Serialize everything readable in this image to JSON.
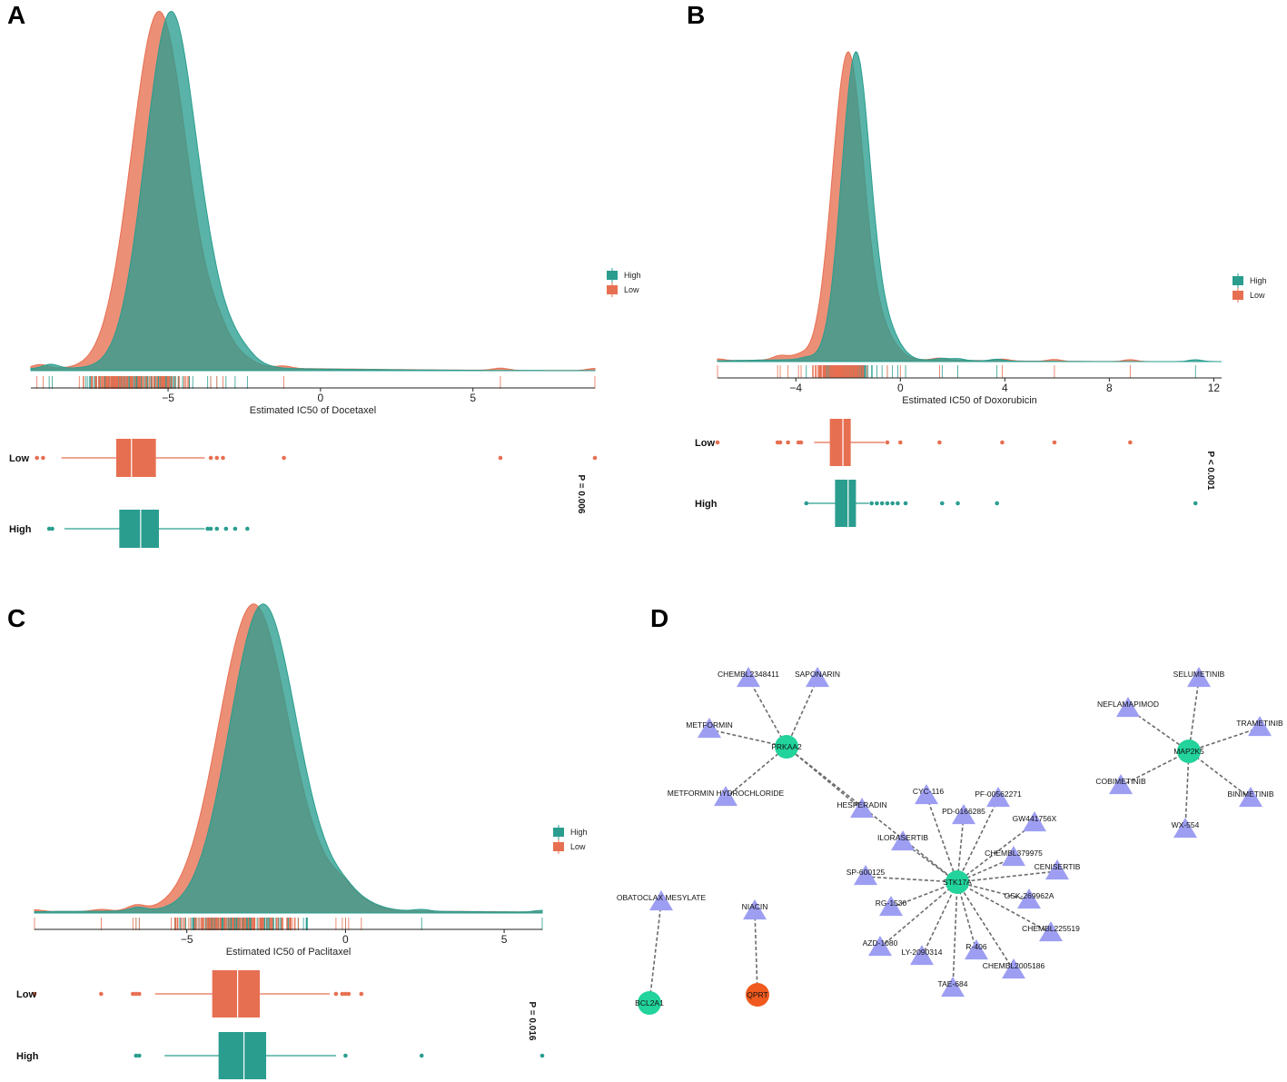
{
  "colors": {
    "high": "#2a9d8f",
    "low": "#e76f51",
    "drug": "#9d9ef2",
    "gene": "#22d39b",
    "gene_alt": "#f05a1e",
    "edge": "#6b6b6b"
  },
  "chart_data": [
    {
      "panel": "A",
      "type": "density+boxplot",
      "xlabel": "Estimated IC50 of Docetaxel",
      "xlim": [
        -9.5,
        9
      ],
      "xticks": [
        -5,
        0,
        5
      ],
      "legend": [
        "High",
        "Low"
      ],
      "series": [
        {
          "name": "High",
          "peak": -4.9,
          "spread": 0.85,
          "box": {
            "min": -8.4,
            "q1": -6.6,
            "median": -5.9,
            "q3": -5.3,
            "max": -3.8
          },
          "outliers": [
            -8.9,
            -8.8,
            -3.7,
            -3.6,
            -3.4,
            -3.1,
            -2.8,
            -2.4
          ]
        },
        {
          "name": "Low",
          "peak": -5.3,
          "spread": 0.9,
          "box": {
            "min": -8.5,
            "q1": -6.7,
            "median": -6.2,
            "q3": -5.4,
            "max": -3.8
          },
          "outliers": [
            -9.3,
            -9.1,
            -3.6,
            -3.4,
            -3.2,
            -1.2,
            5.9,
            9.0
          ]
        }
      ],
      "groups": [
        "Low",
        "High"
      ],
      "pvalue": "P = 0.006"
    },
    {
      "panel": "B",
      "type": "density+boxplot",
      "xlabel": "Estimated IC50 of Doxorubicin",
      "xlim": [
        -7,
        12.3
      ],
      "xticks": [
        -4,
        0,
        4,
        8,
        12
      ],
      "legend": [
        "High",
        "Low"
      ],
      "series": [
        {
          "name": "High",
          "peak": -1.7,
          "spread": 0.55,
          "box": {
            "min": -3.6,
            "q1": -2.5,
            "median": -2.0,
            "q3": -1.7,
            "max": -1.2
          },
          "outliers": [
            -3.6,
            -1.1,
            -0.9,
            -0.7,
            -0.5,
            -0.3,
            -0.1,
            0.2,
            1.6,
            2.2,
            3.7,
            11.3
          ]
        },
        {
          "name": "Low",
          "peak": -2.0,
          "spread": 0.6,
          "box": {
            "min": -3.3,
            "q1": -2.7,
            "median": -2.2,
            "q3": -1.9,
            "max": -0.6
          },
          "outliers": [
            -7.0,
            -4.7,
            -4.6,
            -4.3,
            -3.9,
            -3.8,
            -0.5,
            0.0,
            1.5,
            3.9,
            5.9,
            8.8
          ]
        }
      ],
      "groups": [
        "Low",
        "High"
      ],
      "pvalue": "P < 0.001"
    },
    {
      "panel": "C",
      "type": "density+boxplot",
      "xlabel": "Estimated IC50 of Paclitaxel",
      "xlim": [
        -9.8,
        6.2
      ],
      "xticks": [
        -5,
        0,
        5
      ],
      "legend": [
        "High",
        "Low"
      ],
      "series": [
        {
          "name": "High",
          "peak": -2.6,
          "spread": 1.05,
          "box": {
            "min": -5.7,
            "q1": -4.0,
            "median": -3.2,
            "q3": -2.5,
            "max": -0.3
          },
          "outliers": [
            -6.6,
            -6.5,
            0.0,
            2.4,
            6.2
          ]
        },
        {
          "name": "Low",
          "peak": -2.9,
          "spread": 1.1,
          "box": {
            "min": -6.0,
            "q1": -4.2,
            "median": -3.4,
            "q3": -2.7,
            "max": -0.5
          },
          "outliers": [
            -9.8,
            -7.7,
            -6.7,
            -6.6,
            -6.5,
            -0.3,
            -0.1,
            0.0,
            0.1,
            0.5
          ]
        }
      ],
      "groups": [
        "Low",
        "High"
      ],
      "pvalue": "P = 0.016"
    },
    {
      "panel": "D",
      "type": "network",
      "genes": [
        {
          "id": "PRKAA2",
          "color": "gene"
        },
        {
          "id": "STK17A",
          "color": "gene"
        },
        {
          "id": "MAP2K5",
          "color": "gene"
        },
        {
          "id": "BCL2A1",
          "color": "gene"
        },
        {
          "id": "QPRT",
          "color": "gene_alt"
        }
      ],
      "drugs": [
        "CHEMBL2348411",
        "SAPONARIN",
        "METFORMIN",
        "METFORMIN HYDROCHLORIDE",
        "HESPERADIN",
        "ILORASERTIB",
        "CYC-116",
        "PF-00562271",
        "PD-0166285",
        "GW441756X",
        "CHEMBL379975",
        "CENISERTIB",
        "SP-600125",
        "GSK-269962A",
        "RG-1530",
        "CHEMBL225519",
        "AZD-1080",
        "LY-2090314",
        "R-406",
        "CHEMBL2005186",
        "TAE-684",
        "SELUMETINIB",
        "NEFLAMAPIMOD",
        "TRAMETINIB",
        "COBIMETINIB",
        "BINIMETINIB",
        "WX-554",
        "OBATOCLAX MESYLATE",
        "NIACIN"
      ],
      "edges": [
        [
          "CHEMBL2348411",
          "PRKAA2"
        ],
        [
          "SAPONARIN",
          "PRKAA2"
        ],
        [
          "METFORMIN",
          "PRKAA2"
        ],
        [
          "METFORMIN HYDROCHLORIDE",
          "PRKAA2"
        ],
        [
          "HESPERADIN",
          "PRKAA2"
        ],
        [
          "PRKAA2",
          "STK17A"
        ],
        [
          "ILORASERTIB",
          "STK17A"
        ],
        [
          "CYC-116",
          "STK17A"
        ],
        [
          "PF-00562271",
          "STK17A"
        ],
        [
          "PD-0166285",
          "STK17A"
        ],
        [
          "GW441756X",
          "STK17A"
        ],
        [
          "CHEMBL379975",
          "STK17A"
        ],
        [
          "CENISERTIB",
          "STK17A"
        ],
        [
          "SP-600125",
          "STK17A"
        ],
        [
          "GSK-269962A",
          "STK17A"
        ],
        [
          "RG-1530",
          "STK17A"
        ],
        [
          "CHEMBL225519",
          "STK17A"
        ],
        [
          "AZD-1080",
          "STK17A"
        ],
        [
          "LY-2090314",
          "STK17A"
        ],
        [
          "R-406",
          "STK17A"
        ],
        [
          "CHEMBL2005186",
          "STK17A"
        ],
        [
          "TAE-684",
          "STK17A"
        ],
        [
          "SELUMETINIB",
          "MAP2K5"
        ],
        [
          "NEFLAMAPIMOD",
          "MAP2K5"
        ],
        [
          "TRAMETINIB",
          "MAP2K5"
        ],
        [
          "COBIMETINIB",
          "MAP2K5"
        ],
        [
          "BINIMETINIB",
          "MAP2K5"
        ],
        [
          "WX-554",
          "MAP2K5"
        ],
        [
          "OBATOCLAX MESYLATE",
          "BCL2A1"
        ],
        [
          "NIACIN",
          "QPRT"
        ]
      ]
    }
  ]
}
